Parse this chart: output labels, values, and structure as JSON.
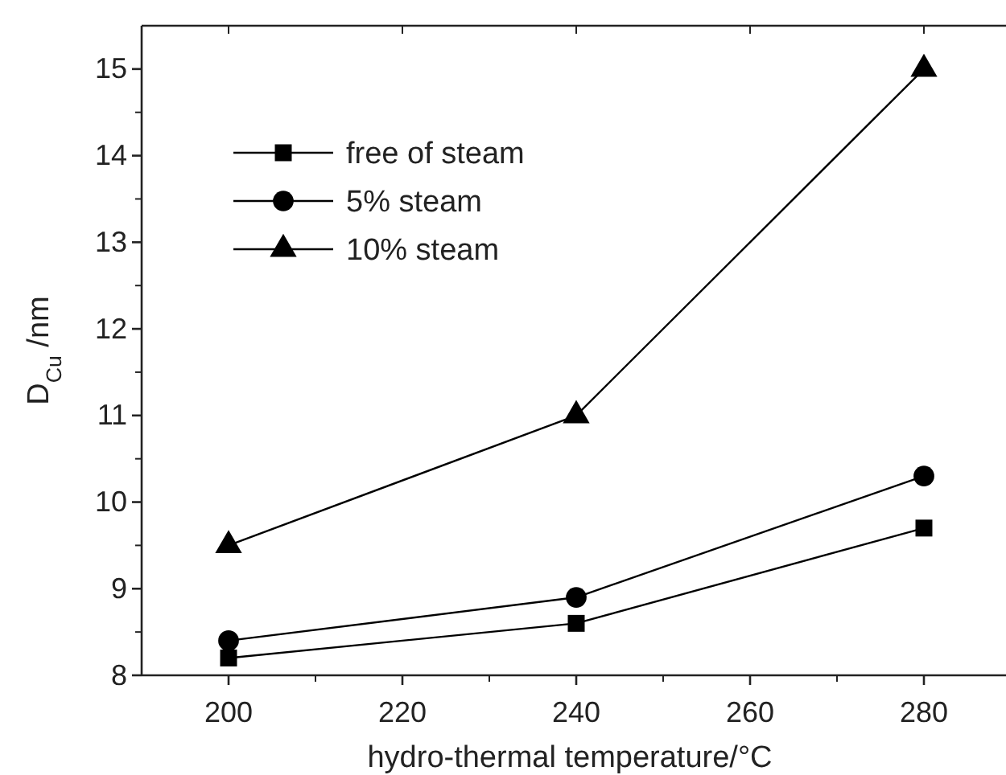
{
  "chart_data": {
    "type": "line",
    "xlabel": "hydro-thermal temperature/°C",
    "ylabel": "D$_{Cu}$ /nm",
    "x": [
      200,
      240,
      280
    ],
    "series": [
      {
        "name": "free of steam",
        "color": "#000000",
        "marker": "square",
        "values": [
          8.2,
          8.6,
          9.7
        ]
      },
      {
        "name": "5% steam",
        "color": "#000000",
        "marker": "circle",
        "values": [
          8.4,
          8.9,
          10.3
        ]
      },
      {
        "name": "10% steam",
        "color": "#000000",
        "marker": "triangle",
        "values": [
          9.5,
          11.0,
          15.0
        ]
      }
    ],
    "xlim": [
      190,
      290
    ],
    "xticks": [
      200,
      220,
      240,
      260,
      280
    ],
    "ylim": [
      8,
      15.5
    ],
    "yticks": [
      8,
      9,
      10,
      11,
      12,
      13,
      14,
      15
    ],
    "grid": false,
    "legend": "top left",
    "line_style": "solid"
  }
}
